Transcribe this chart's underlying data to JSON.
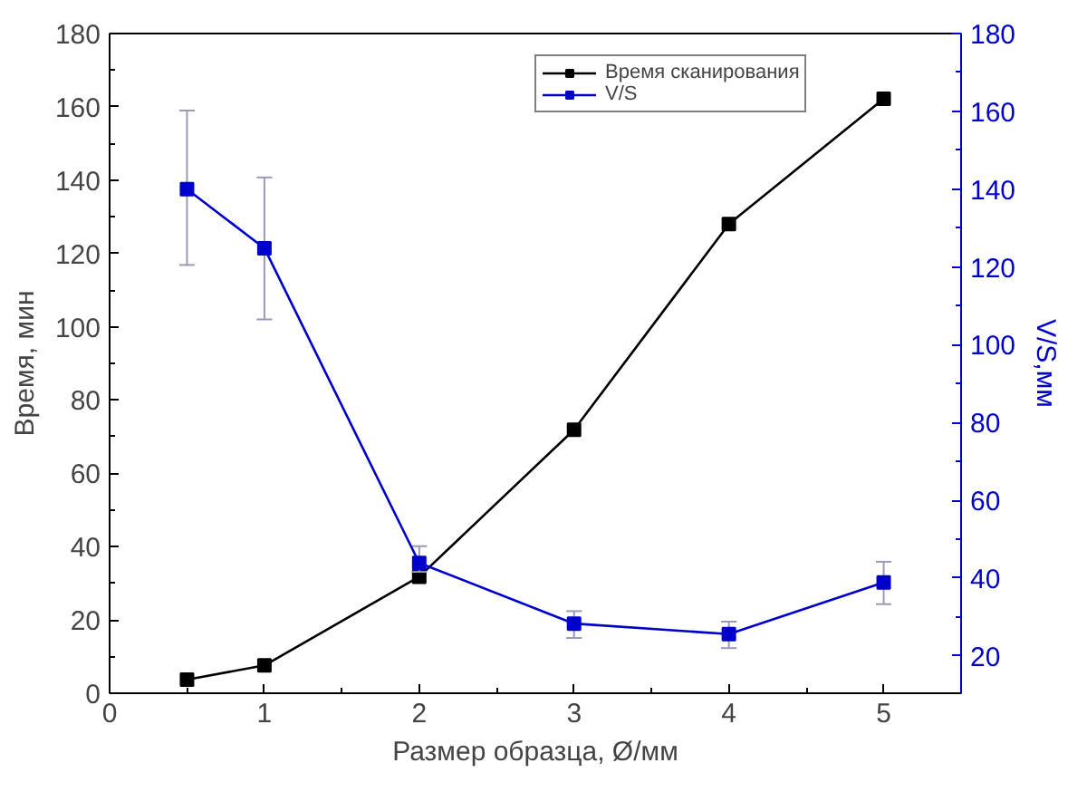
{
  "chart_data": {
    "type": "line",
    "xlabel": "Размер образца, Ø/мм",
    "ylabel": "Время, мин",
    "y2label": "V/S,мм",
    "x": [
      0.5,
      1,
      2,
      3,
      4,
      5
    ],
    "series": [
      {
        "name": "Время сканирования",
        "color": "#000000",
        "values": [
          3.7,
          7.6,
          31.8,
          71.9,
          128,
          162.2
        ]
      },
      {
        "name": "V/S",
        "color": "#0000cc",
        "axis": "y2",
        "values": [
          140,
          124.8,
          43.9,
          28.3,
          25.6,
          38.9
        ],
        "errors": [
          [
            120.5,
            160.2
          ],
          [
            106.5,
            143
          ],
          [
            41.6,
            48.2
          ],
          [
            24.6,
            31.5
          ],
          [
            22,
            28.8
          ],
          [
            33.3,
            44.2
          ]
        ]
      }
    ],
    "xlim": [
      0,
      5.5
    ],
    "xticks": [
      0,
      1,
      2,
      3,
      4,
      5
    ],
    "ylim": [
      0,
      180
    ],
    "yticks": [
      0,
      20,
      40,
      60,
      80,
      100,
      120,
      140,
      160,
      180
    ],
    "y2lim": [
      10.4,
      180
    ],
    "y2ticks": [
      20,
      40,
      60,
      80,
      100,
      120,
      140,
      160,
      180
    ],
    "marker": "square",
    "legend": "top right",
    "grid": false
  }
}
